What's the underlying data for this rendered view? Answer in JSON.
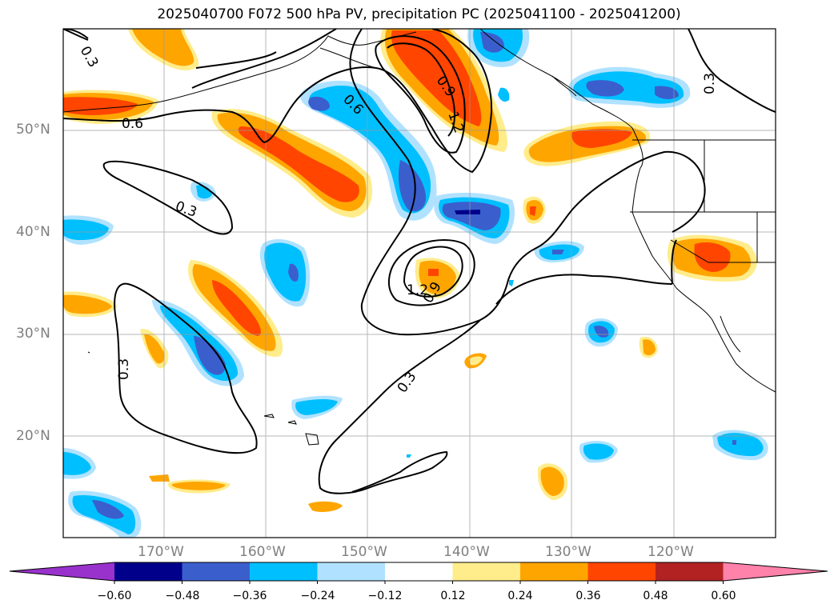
{
  "title": "2025040700 F072 500 hPa PV, precipitation PC (2025041100 - 2025041200)",
  "map": {
    "lat_ticks": [
      "50°N",
      "40°N",
      "30°N",
      "20°N"
    ],
    "lon_ticks": [
      "170°W",
      "160°W",
      "150°W",
      "140°W",
      "130°W",
      "120°W"
    ],
    "pv_contour_labels": [
      "0.3",
      "0.6",
      "0.3",
      "0.3",
      "0.6",
      "0.9",
      "1.2",
      "1.2",
      "0.9",
      "0.3",
      "0.3"
    ]
  },
  "colorbar": {
    "ticks": [
      "−0.60",
      "−0.48",
      "−0.36",
      "−0.24",
      "−0.12",
      "0.12",
      "0.24",
      "0.36",
      "0.48",
      "0.60"
    ],
    "colors": [
      "#9932cc",
      "#00008b",
      "#3a5fcd",
      "#00bfff",
      "#b0e2ff",
      "#ffffff",
      "#ffec8b",
      "#ffa500",
      "#ff4500",
      "#b22222",
      "#ff82ab"
    ]
  },
  "colors": {
    "neg_strong": "#3a5fcd",
    "neg_mid": "#00bfff",
    "neg_light": "#b0e2ff",
    "neg_dark": "#00008b",
    "pos_light": "#ffec8b",
    "pos_mid": "#ffa500",
    "pos_strong": "#ff4500"
  }
}
